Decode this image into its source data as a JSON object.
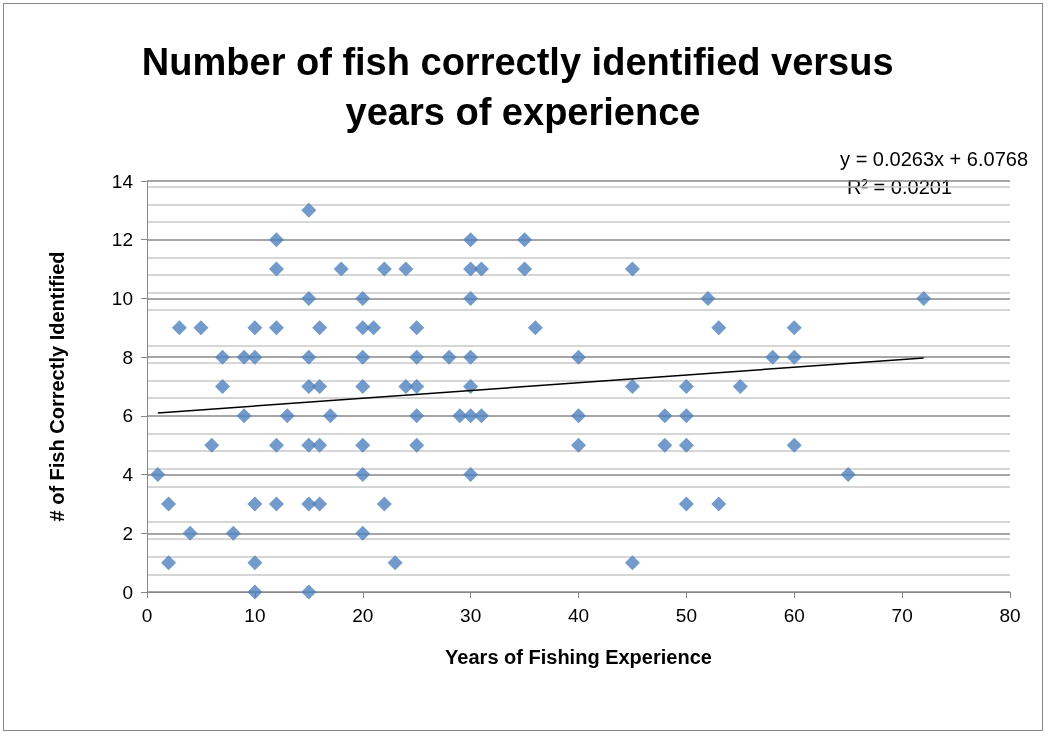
{
  "chart_data": {
    "type": "scatter",
    "title": "Number of fish correctly identified versus years of experience",
    "xlabel": "Years of Fishing Experience",
    "ylabel": "# of Fish Correctly Identified",
    "annotations": [
      "y = 0.0263x + 6.0768",
      "R² = 0.0201"
    ],
    "xlim": [
      0,
      80
    ],
    "xticks": [
      0,
      10,
      20,
      30,
      40,
      50,
      60,
      70,
      80
    ],
    "ylim": [
      0,
      14
    ],
    "yticks": [
      0,
      2,
      4,
      6,
      8,
      10,
      12,
      14
    ],
    "grid": "y",
    "marker": "diamond",
    "series": [
      {
        "color": "#4f81bd",
        "x": [
          1,
          2,
          2,
          3,
          4,
          5,
          6,
          7,
          7,
          8,
          9,
          9,
          10,
          10,
          10,
          10,
          10,
          12,
          12,
          12,
          12,
          12,
          13,
          15,
          15,
          15,
          15,
          15,
          15,
          15,
          16,
          16,
          16,
          16,
          17,
          18,
          20,
          20,
          20,
          20,
          20,
          20,
          20,
          21,
          22,
          22,
          23,
          24,
          24,
          25,
          25,
          25,
          25,
          25,
          28,
          29,
          30,
          30,
          30,
          30,
          30,
          30,
          30,
          31,
          31,
          35,
          35,
          36,
          40,
          40,
          40,
          45,
          45,
          45,
          48,
          48,
          50,
          50,
          50,
          50,
          52,
          53,
          53,
          55,
          58,
          60,
          60,
          60,
          65,
          72
        ],
        "values": [
          4,
          3,
          1,
          9,
          2,
          9,
          5,
          8,
          7,
          2,
          8,
          6,
          9,
          8,
          3,
          1,
          0,
          12,
          11,
          9,
          5,
          3,
          6,
          13,
          10,
          8,
          7,
          5,
          3,
          0,
          9,
          7,
          5,
          3,
          6,
          11,
          10,
          9,
          8,
          7,
          5,
          4,
          2,
          9,
          11,
          3,
          1,
          11,
          7,
          9,
          8,
          7,
          6,
          5,
          8,
          6,
          12,
          11,
          10,
          8,
          7,
          6,
          4,
          11,
          6,
          12,
          11,
          9,
          8,
          6,
          5,
          11,
          7,
          1,
          6,
          5,
          7,
          6,
          5,
          3,
          10,
          9,
          3,
          7,
          8,
          9,
          8,
          5,
          4,
          10
        ]
      },
      {
        "type": "line",
        "color": "#000000",
        "marker": "none",
        "x": [
          1,
          72
        ],
        "values": [
          6.1,
          7.97
        ]
      }
    ]
  }
}
